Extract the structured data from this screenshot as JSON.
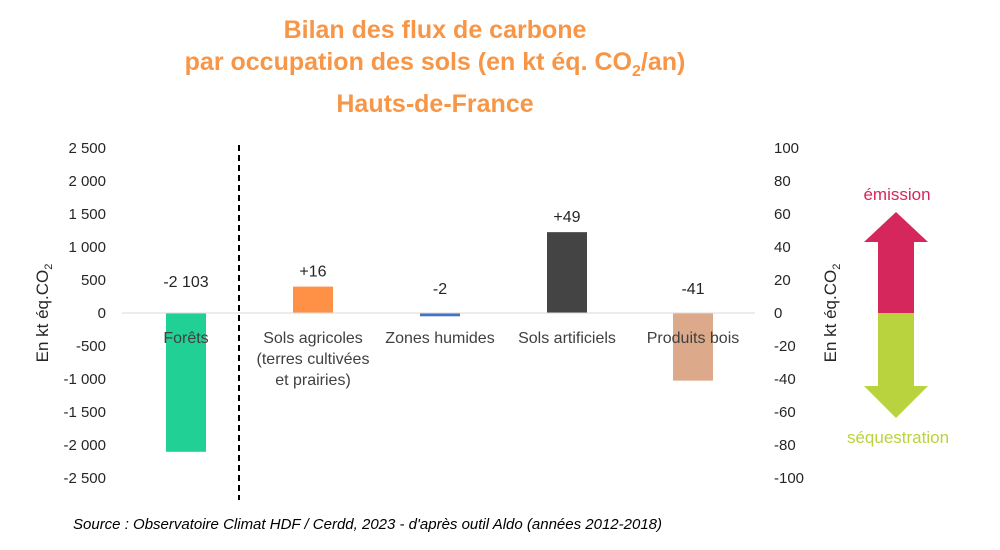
{
  "title": {
    "line1": "Bilan des flux de carbone",
    "line2_pre": "par occupation des sols (en kt éq. CO",
    "line2_sub": "2",
    "line2_post": "/an)",
    "line3": "Hauts-de-France"
  },
  "chart_data": {
    "type": "bar",
    "categories": [
      "Forêts",
      "Sols agricoles (terres cultivées et prairies)",
      "Zones humides",
      "Sols artificiels",
      "Produits bois"
    ],
    "category_lines": [
      [
        "Forêts"
      ],
      [
        "Sols agricoles",
        "(terres cultivées",
        "et prairies)"
      ],
      [
        "Zones humides"
      ],
      [
        "Sols artificiels"
      ],
      [
        "Produits bois"
      ]
    ],
    "series": [
      {
        "axis": "left",
        "values": [
          -2103,
          null,
          null,
          null,
          null
        ]
      },
      {
        "axis": "right",
        "values": [
          null,
          16,
          -2,
          49,
          -41
        ]
      }
    ],
    "data_labels": [
      "-2 103",
      "+16",
      "-2",
      "+49",
      "-41"
    ],
    "colors": [
      "#21d095",
      "#ff9147",
      "#4472c4",
      "#444444",
      "#dca98a"
    ],
    "left_axis": {
      "label": "En kt éq.CO",
      "label_sub": "2",
      "ylim": [
        -2500,
        2500
      ],
      "ticks": [
        2500,
        2000,
        1500,
        1000,
        500,
        0,
        -500,
        -1000,
        -1500,
        -2000,
        -2500
      ],
      "tick_labels": [
        "2 500",
        "2 000",
        "1 500",
        "1 000",
        "500",
        "0",
        "-500",
        "-1 000",
        "-1 500",
        "-2 000",
        "-2 500"
      ]
    },
    "right_axis": {
      "label": "En kt éq.CO",
      "label_sub": "2",
      "ylim": [
        -100,
        100
      ],
      "ticks": [
        100,
        80,
        60,
        40,
        20,
        0,
        -20,
        -40,
        -60,
        -80,
        -100
      ],
      "tick_labels": [
        "100",
        "80",
        "60",
        "40",
        "20",
        "0",
        "-20",
        "-40",
        "-60",
        "-80",
        "-100"
      ]
    },
    "gridlines": false,
    "separator": "dashed vertical line between Forêts and other categories"
  },
  "legend_arrow": {
    "top_label": "émission",
    "bottom_label": "séquestration",
    "top_color": "#d6275c",
    "bottom_color": "#b9d33f"
  },
  "source": "Source : Observatoire Climat HDF / Cerdd, 2023 - d'après outil Aldo (années 2012-2018)"
}
